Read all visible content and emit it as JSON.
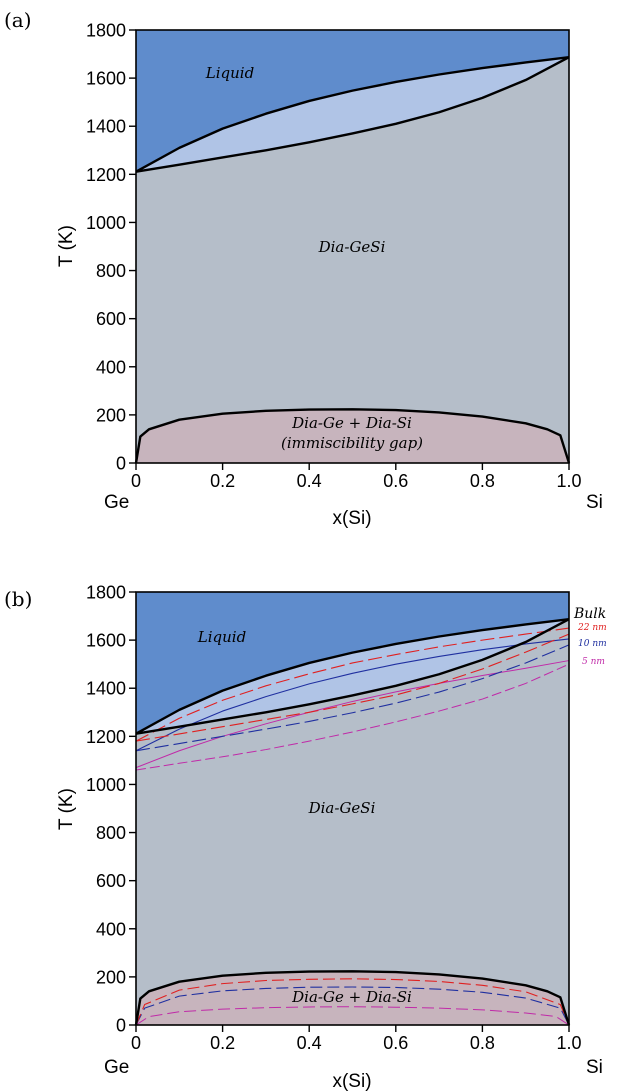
{
  "colors": {
    "liquid": "#5f8ccc",
    "two_phase": "#b0c4e6",
    "solid": "#b5bec9",
    "gap": "#c7b4bd",
    "bulk_line": "#000000",
    "nm22": "#e02020",
    "nm10": "#2030a0",
    "nm5": "#c02aa8"
  },
  "chart_data": [
    {
      "panel_label": "(a)",
      "type": "line",
      "ylabel": "T (K)",
      "xlabel": "x(Si)",
      "xlim": [
        0,
        1
      ],
      "ylim": [
        0,
        1800
      ],
      "x_ticks": [
        "0",
        "0.2",
        "0.4",
        "0.6",
        "0.8",
        "1.0"
      ],
      "y_ticks": [
        "0",
        "200",
        "400",
        "600",
        "800",
        "1000",
        "1200",
        "1400",
        "1600",
        "1800"
      ],
      "x_end_labels": {
        "left": "Ge",
        "right": "Si"
      },
      "region_labels": {
        "liquid": "Liquid",
        "solid": "Dia-GeSi",
        "gap_line1": "Dia-Ge + Dia-Si",
        "gap_line2": "(immiscibility gap)"
      },
      "series": [
        {
          "x": [
            0,
            0.1,
            0.2,
            0.3,
            0.4,
            0.5,
            0.6,
            0.7,
            0.8,
            0.9,
            1.0
          ],
          "liquidus": [
            1211,
            1310,
            1390,
            1452,
            1505,
            1548,
            1584,
            1615,
            1642,
            1665,
            1687
          ],
          "solidus": [
            1211,
            1240,
            1270,
            1300,
            1333,
            1370,
            1410,
            1458,
            1518,
            1592,
            1687
          ],
          "gap": {
            "x": [
              0,
              0.01,
              0.03,
              0.1,
              0.2,
              0.3,
              0.4,
              0.5,
              0.6,
              0.7,
              0.8,
              0.9,
              0.95,
              0.98,
              1.0
            ],
            "t": [
              0,
              110,
              140,
              180,
              205,
              217,
              222,
              223,
              220,
              210,
              193,
              165,
              140,
              115,
              0
            ]
          }
        }
      ]
    },
    {
      "panel_label": "(b)",
      "type": "line",
      "ylabel": "T (K)",
      "xlabel": "x(Si)",
      "xlim": [
        0,
        1
      ],
      "ylim": [
        0,
        1800
      ],
      "x_ticks": [
        "0",
        "0.2",
        "0.4",
        "0.6",
        "0.8",
        "1.0"
      ],
      "y_ticks": [
        "0",
        "200",
        "400",
        "600",
        "800",
        "1000",
        "1200",
        "1400",
        "1600",
        "1800"
      ],
      "x_end_labels": {
        "left": "Ge",
        "right": "Si"
      },
      "region_labels": {
        "liquid": "Liquid",
        "solid": "Dia-GeSi",
        "gap_line1": "Dia-Ge + Dia-Si"
      },
      "series": [
        {
          "name": "Bulk",
          "x": [
            0,
            0.1,
            0.2,
            0.3,
            0.4,
            0.5,
            0.6,
            0.7,
            0.8,
            0.9,
            1.0
          ],
          "liquidus": [
            1211,
            1310,
            1390,
            1452,
            1505,
            1548,
            1584,
            1615,
            1642,
            1665,
            1687
          ],
          "solidus": [
            1211,
            1240,
            1270,
            1300,
            1333,
            1370,
            1410,
            1458,
            1518,
            1592,
            1687
          ],
          "gap": {
            "x": [
              0,
              0.01,
              0.03,
              0.1,
              0.2,
              0.3,
              0.4,
              0.5,
              0.6,
              0.7,
              0.8,
              0.9,
              0.95,
              0.98,
              1.0
            ],
            "t": [
              0,
              110,
              140,
              180,
              205,
              217,
              222,
              223,
              220,
              210,
              193,
              165,
              140,
              115,
              0
            ]
          }
        },
        {
          "name": "22 nm",
          "x": [
            0,
            0.1,
            0.2,
            0.3,
            0.4,
            0.5,
            0.6,
            0.7,
            0.8,
            0.9,
            1.0
          ],
          "liquidus": [
            1180,
            1275,
            1350,
            1410,
            1460,
            1505,
            1540,
            1572,
            1600,
            1625,
            1650
          ],
          "solidus": [
            1180,
            1210,
            1240,
            1270,
            1300,
            1335,
            1372,
            1420,
            1480,
            1550,
            1625
          ],
          "gap": {
            "x": [
              0,
              0.02,
              0.1,
              0.2,
              0.3,
              0.4,
              0.5,
              0.6,
              0.7,
              0.8,
              0.9,
              0.98,
              1.0
            ],
            "t": [
              0,
              85,
              145,
              172,
              185,
              190,
              192,
              189,
              181,
              165,
              138,
              85,
              0
            ]
          }
        },
        {
          "name": "10 nm",
          "x": [
            0,
            0.1,
            0.2,
            0.3,
            0.4,
            0.5,
            0.6,
            0.7,
            0.8,
            0.9,
            1.0
          ],
          "liquidus": [
            1140,
            1230,
            1305,
            1365,
            1418,
            1462,
            1500,
            1532,
            1560,
            1584,
            1605
          ],
          "solidus": [
            1140,
            1170,
            1200,
            1230,
            1262,
            1298,
            1338,
            1384,
            1440,
            1505,
            1580
          ],
          "gap": {
            "x": [
              0,
              0.02,
              0.1,
              0.2,
              0.3,
              0.4,
              0.5,
              0.6,
              0.7,
              0.8,
              0.9,
              0.98,
              1.0
            ],
            "t": [
              0,
              70,
              120,
              142,
              152,
              157,
              158,
              156,
              149,
              136,
              112,
              70,
              0
            ]
          }
        },
        {
          "name": "5 nm",
          "x": [
            0,
            0.1,
            0.2,
            0.3,
            0.4,
            0.5,
            0.6,
            0.7,
            0.8,
            0.9,
            1.0
          ],
          "liquidus": [
            1070,
            1140,
            1200,
            1252,
            1300,
            1345,
            1385,
            1420,
            1453,
            1483,
            1515
          ],
          "solidus": [
            1060,
            1088,
            1115,
            1145,
            1180,
            1218,
            1260,
            1305,
            1355,
            1420,
            1500
          ],
          "gap": {
            "x": [
              0,
              0.03,
              0.1,
              0.2,
              0.3,
              0.4,
              0.5,
              0.6,
              0.7,
              0.8,
              0.9,
              0.97,
              1.0
            ],
            "t": [
              0,
              35,
              55,
              66,
              72,
              75,
              76,
              74,
              70,
              63,
              50,
              35,
              0
            ]
          }
        }
      ]
    }
  ]
}
